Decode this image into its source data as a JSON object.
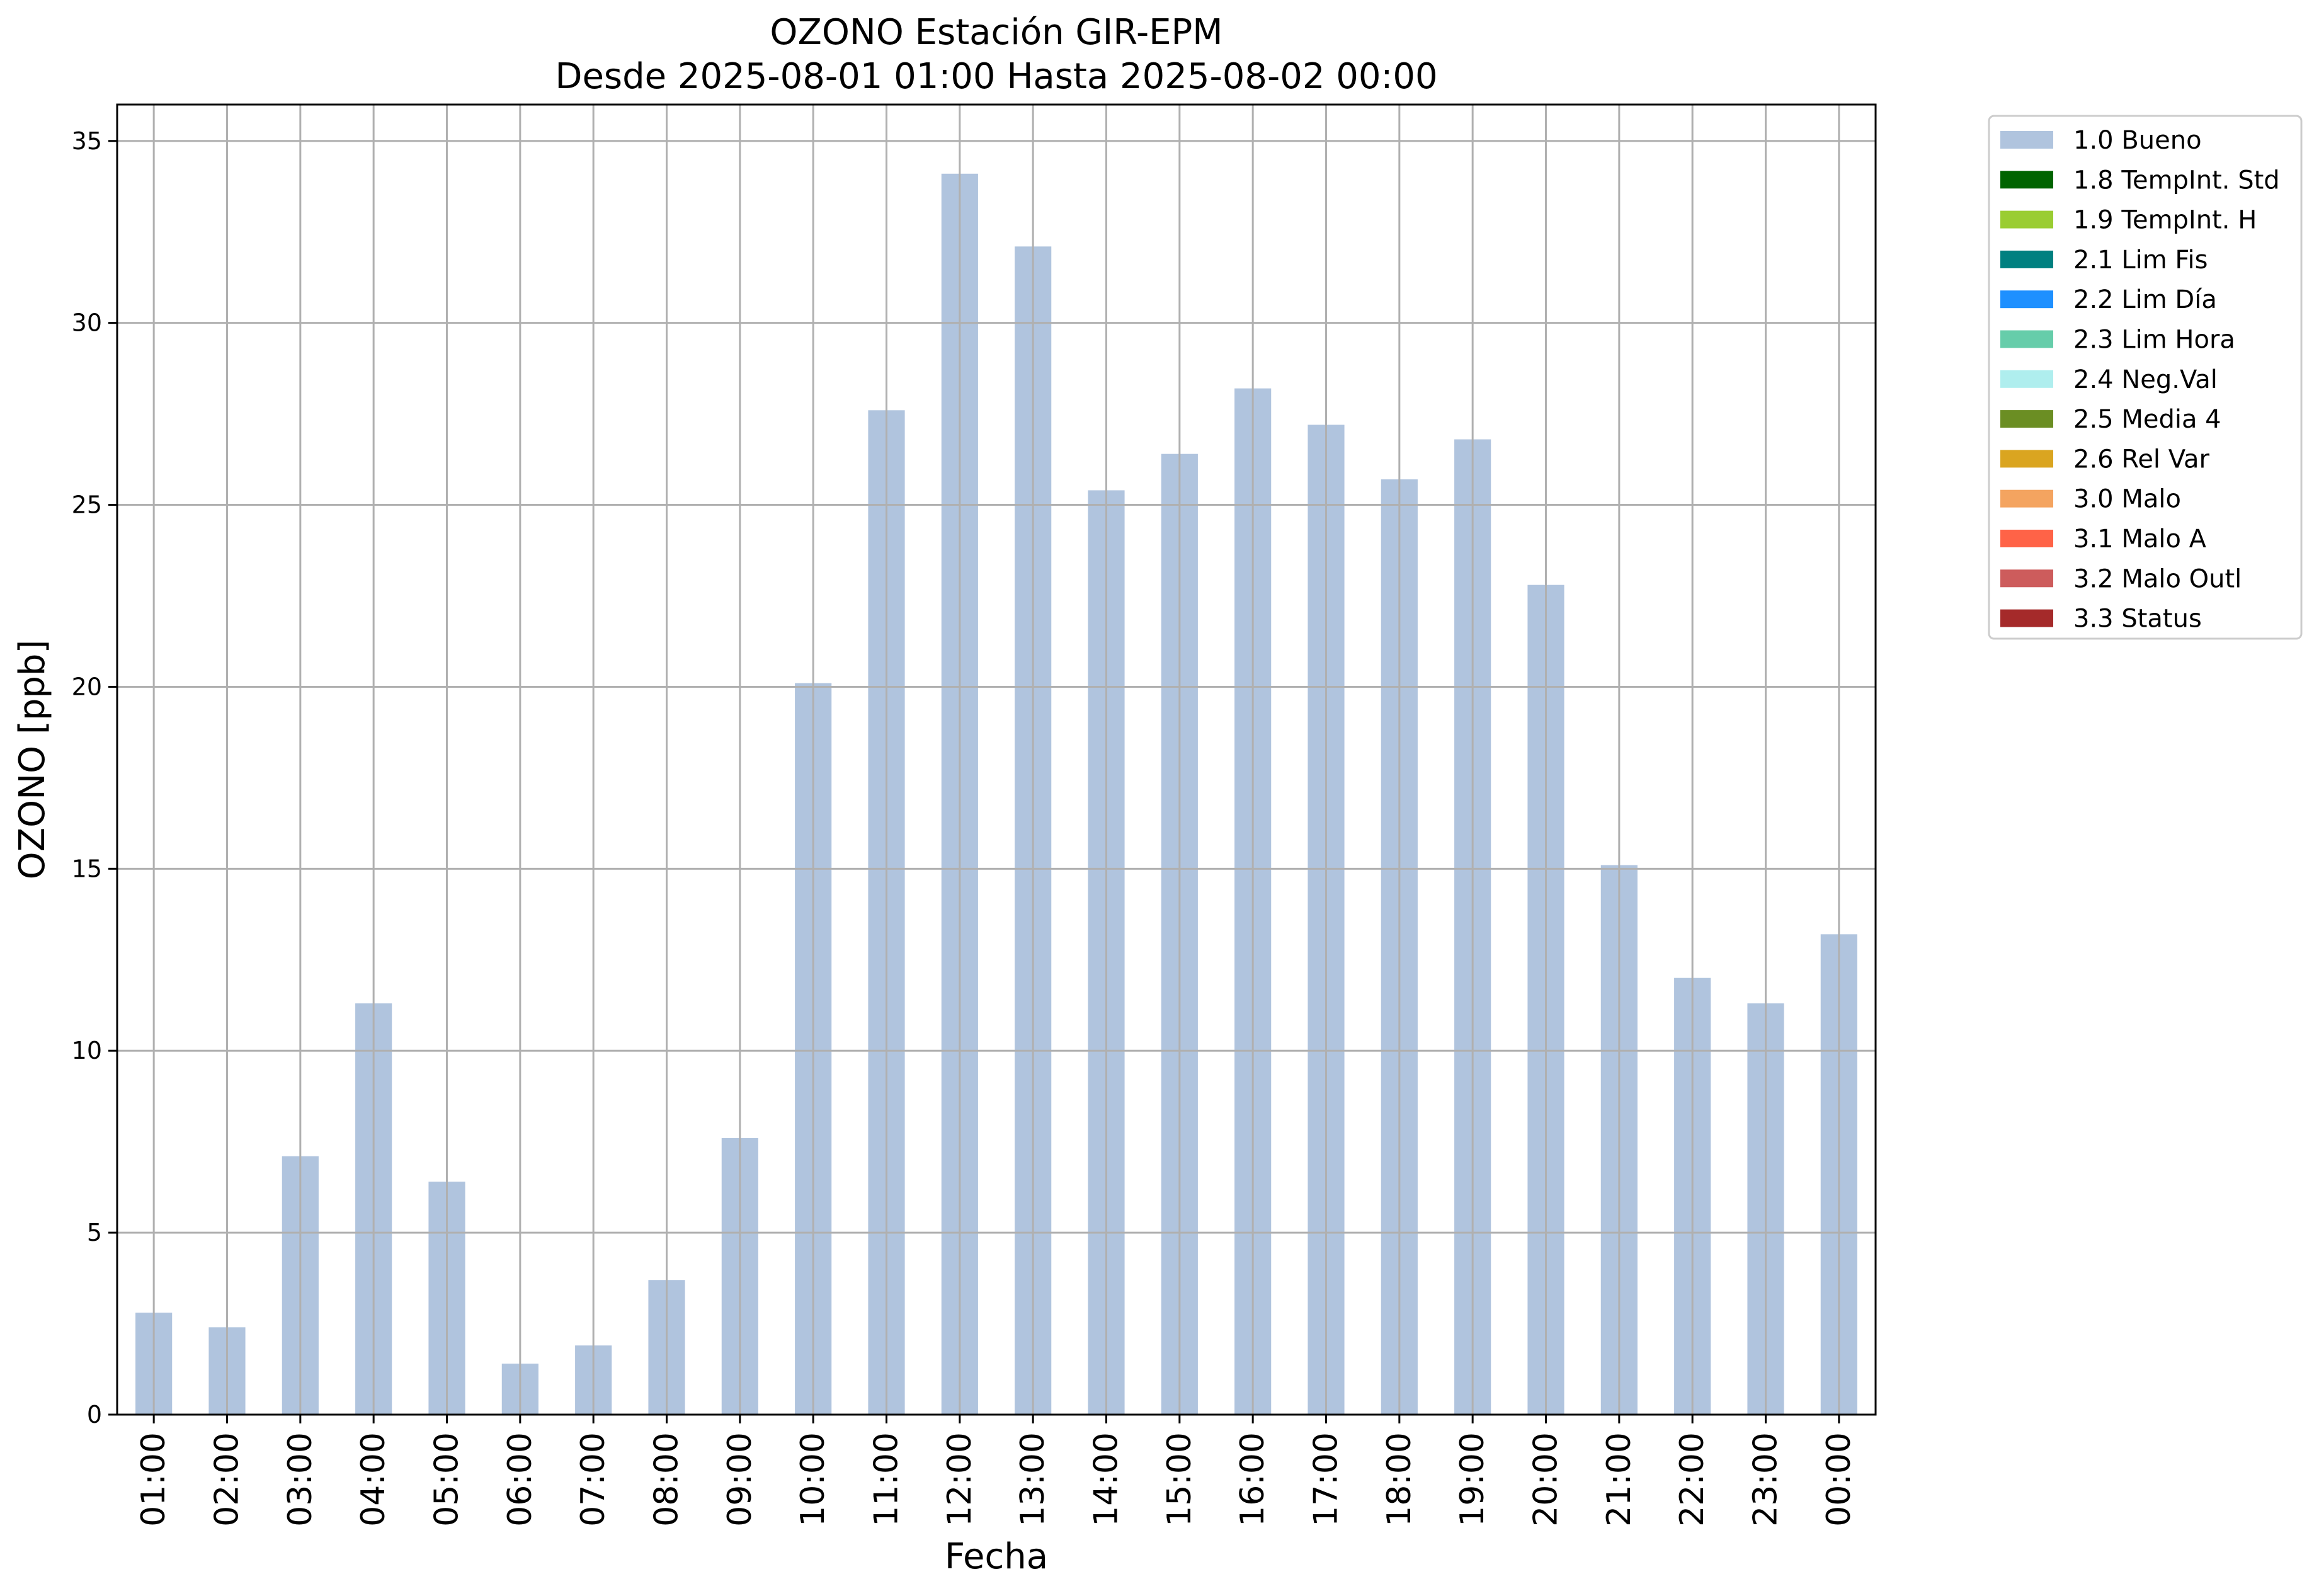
{
  "chart_data": {
    "type": "bar",
    "title": "OZONO Estación GIR-EPM",
    "subtitle": "Desde 2025-08-01 01:00 Hasta 2025-08-02 00:00",
    "xlabel": "Fecha",
    "ylabel": "OZONO [ppb]",
    "ylim": [
      0,
      36
    ],
    "yticks": [
      0,
      5,
      10,
      15,
      20,
      25,
      30,
      35
    ],
    "grid": true,
    "legend_position": "outside-top-right",
    "categories": [
      "01:00",
      "02:00",
      "03:00",
      "04:00",
      "05:00",
      "06:00",
      "07:00",
      "08:00",
      "09:00",
      "10:00",
      "11:00",
      "12:00",
      "13:00",
      "14:00",
      "15:00",
      "16:00",
      "17:00",
      "18:00",
      "19:00",
      "20:00",
      "21:00",
      "22:00",
      "23:00",
      "00:00"
    ],
    "series": [
      {
        "name": "1.0 Bueno",
        "color": "#b0c4de",
        "values": [
          2.8,
          2.4,
          7.1,
          11.3,
          6.4,
          1.4,
          1.9,
          3.7,
          7.6,
          20.1,
          27.6,
          34.1,
          32.1,
          25.4,
          26.4,
          28.2,
          27.2,
          25.7,
          26.8,
          22.8,
          15.1,
          12.0,
          11.3,
          13.2
        ]
      }
    ],
    "legend": [
      {
        "label": "1.0 Bueno",
        "color": "#b0c4de"
      },
      {
        "label": "1.8 TempInt. Std",
        "color": "#006400"
      },
      {
        "label": "1.9 TempInt. H",
        "color": "#9acd32"
      },
      {
        "label": "2.1 Lim Fis",
        "color": "#008080"
      },
      {
        "label": "2.2 Lim Día",
        "color": "#1e90ff"
      },
      {
        "label": "2.3 Lim Hora",
        "color": "#66cdaa"
      },
      {
        "label": "2.4 Neg.Val",
        "color": "#afeeee"
      },
      {
        "label": "2.5 Media 4",
        "color": "#6b8e23"
      },
      {
        "label": "2.6 Rel Var",
        "color": "#daa520"
      },
      {
        "label": "3.0 Malo",
        "color": "#f4a460"
      },
      {
        "label": "3.1 Malo A",
        "color": "#ff6347"
      },
      {
        "label": "3.2 Malo Outl",
        "color": "#cd5c5c"
      },
      {
        "label": "3.3 Status",
        "color": "#a52a2a"
      }
    ]
  }
}
